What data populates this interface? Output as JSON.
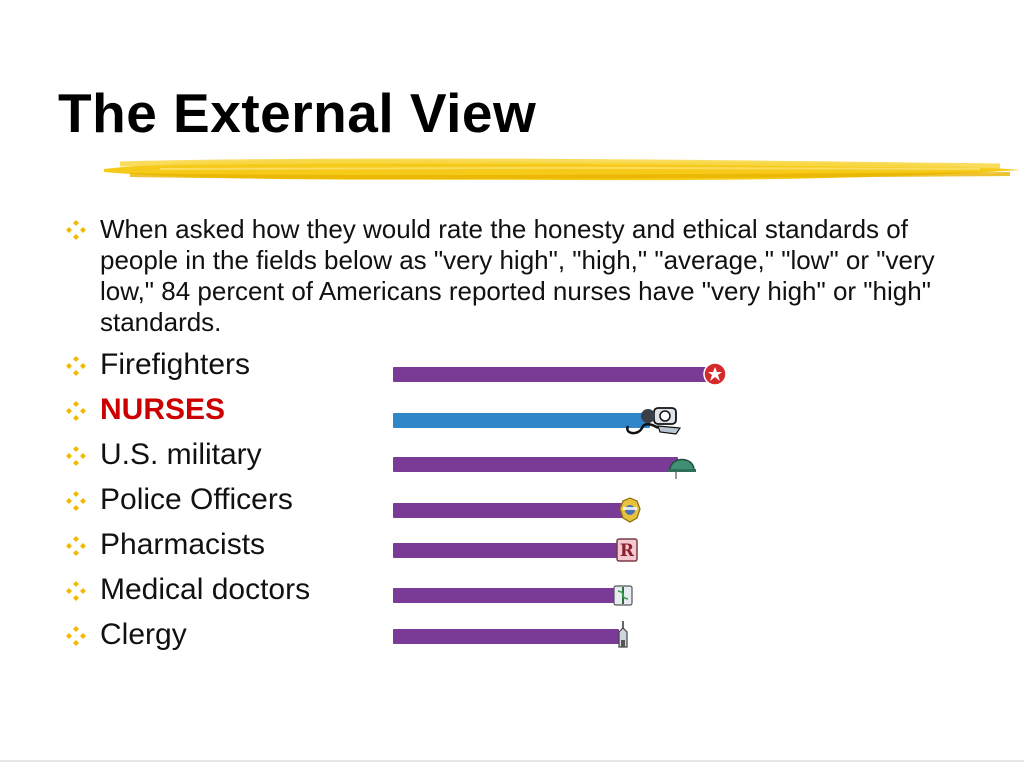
{
  "title": "The External View",
  "intro": "When asked how they would rate the honesty and ethical standards of people in the fields below as \"very high\", \"high,\" \"average,\" \"low\" or \"very low,\" 84 percent of Americans reported nurses have \"very high\" or \"high\" standards.",
  "colors": {
    "bullet": "#f5b800",
    "highlight": "#f5c400",
    "bar_default": "#7a3b96",
    "bar_emphasis": "#2f86c8",
    "label_emphasis": "#cc0000"
  },
  "bullet_icon": "diamond-bullet-icon",
  "professions": [
    {
      "label": "Firefighters",
      "icon": "firefighter-emblem-icon"
    },
    {
      "label": "NURSES",
      "icon": "stethoscope-icon"
    },
    {
      "label": "U.S. military",
      "icon": "military-helmet-icon"
    },
    {
      "label": "Police Officers",
      "icon": "police-badge-icon"
    },
    {
      "label": "Pharmacists",
      "icon": "prescription-rx-icon"
    },
    {
      "label": "Medical doctors",
      "icon": "caduceus-icon"
    },
    {
      "label": "Clergy",
      "icon": "church-steeple-icon"
    }
  ],
  "chart_data": {
    "type": "bar",
    "orientation": "horizontal",
    "categories": [
      "Firefighters",
      "NURSES",
      "U.S. military",
      "Police Officers",
      "Pharmacists",
      "Medical doctors",
      "Clergy"
    ],
    "values": [
      318,
      257,
      285,
      233,
      230,
      226,
      226
    ],
    "value_note": "relative bar lengths as drawn; no axis or numeric labels are printed",
    "highlighted_category": "NURSES"
  }
}
